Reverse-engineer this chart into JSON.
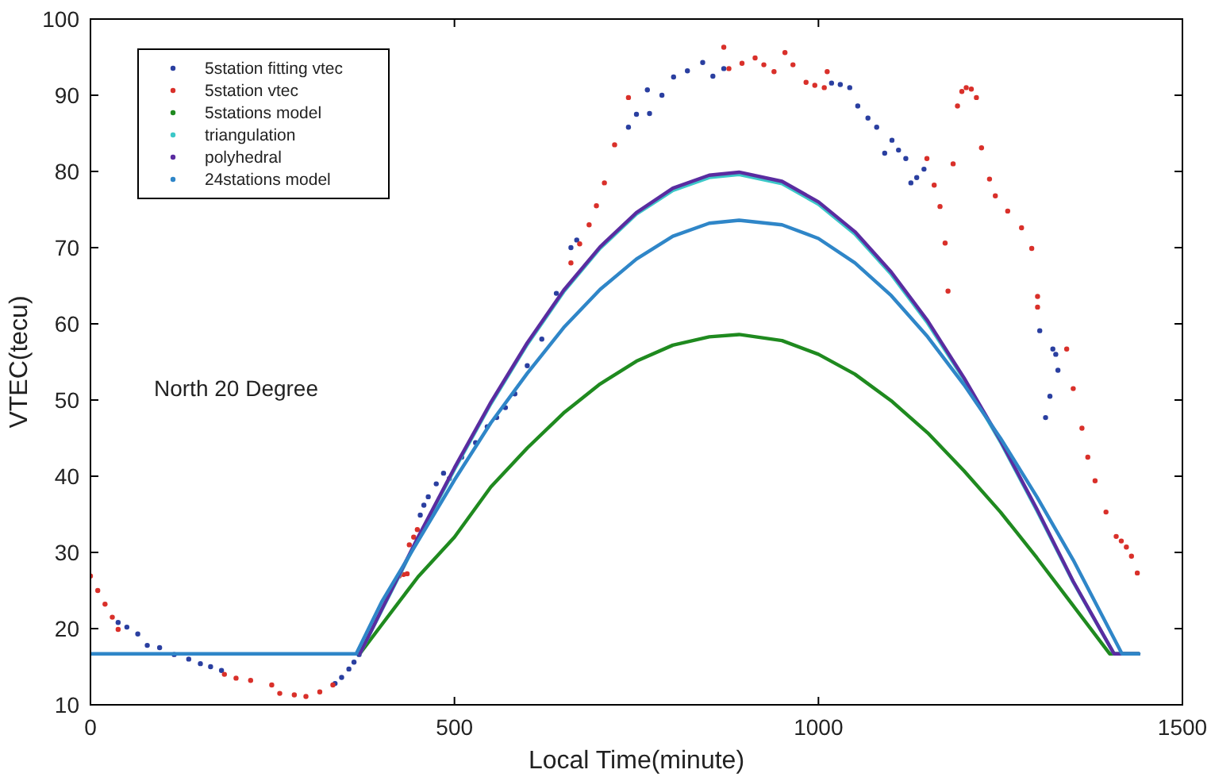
{
  "chart_data": {
    "type": "line",
    "xlabel": "Local Time(minute)",
    "ylabel": "VTEC(tecu)",
    "xlim": [
      0,
      1500
    ],
    "ylim": [
      10,
      100
    ],
    "xticks": [
      0,
      500,
      1000,
      1500
    ],
    "yticks": [
      10,
      20,
      30,
      40,
      50,
      60,
      70,
      80,
      90,
      100
    ],
    "grid": false,
    "legend": "top left",
    "annotations": [
      "North 20 Degree"
    ],
    "series": [
      {
        "name": "5station fitting vtec",
        "type": "scatter",
        "marker": "circle",
        "color": "#2a3fa0",
        "x": [
          38,
          50,
          65,
          78,
          95,
          115,
          135,
          151,
          165,
          180,
          336,
          345,
          355,
          362,
          369,
          453,
          458,
          464,
          475,
          485,
          493,
          510,
          529,
          545,
          558,
          570,
          583,
          600,
          620,
          640,
          660,
          668,
          739,
          750,
          765,
          768,
          785,
          801,
          820,
          841,
          855,
          870,
          1018,
          1030,
          1043,
          1054,
          1068,
          1080,
          1091,
          1101,
          1110,
          1120,
          1127,
          1135,
          1145,
          1304,
          1312,
          1318,
          1322,
          1326,
          1329
        ],
        "values": [
          20.8,
          20.2,
          19.3,
          17.8,
          17.5,
          16.6,
          16.0,
          15.4,
          15.0,
          14.5,
          12.8,
          13.6,
          14.7,
          15.6,
          16.6,
          34.9,
          36.2,
          37.3,
          39.0,
          40.4,
          39.7,
          42.5,
          44.4,
          46.5,
          47.7,
          49.0,
          50.8,
          54.5,
          58.0,
          64.0,
          70.0,
          71.0,
          85.8,
          87.5,
          90.7,
          87.6,
          90.0,
          92.4,
          93.2,
          94.3,
          92.5,
          93.5,
          91.6,
          91.4,
          91.0,
          88.6,
          87.0,
          85.8,
          82.4,
          84.1,
          82.8,
          81.7,
          78.5,
          79.2,
          80.3,
          59.1,
          47.7,
          50.5,
          56.7,
          56.0,
          53.9
        ]
      },
      {
        "name": "5station vtec",
        "type": "scatter",
        "marker": "circle",
        "color": "#d9302a",
        "x": [
          0,
          10,
          20,
          30,
          38,
          184,
          200,
          220,
          249,
          260,
          280,
          296,
          315,
          333,
          424,
          430,
          435,
          438,
          444,
          449,
          660,
          672,
          685,
          695,
          706,
          720,
          739,
          870,
          877,
          895,
          913,
          925,
          939,
          954,
          965,
          983,
          995,
          1008,
          1012,
          1149,
          1159,
          1167,
          1174,
          1178,
          1185,
          1191,
          1197,
          1203,
          1210,
          1217,
          1224,
          1235,
          1243,
          1260,
          1279,
          1293,
          1301,
          1301,
          1341,
          1350,
          1362,
          1370,
          1380,
          1395,
          1409,
          1416,
          1423,
          1430,
          1438
        ],
        "values": [
          26.9,
          25.0,
          23.2,
          21.5,
          19.9,
          14.0,
          13.5,
          13.2,
          12.6,
          11.5,
          11.3,
          11.1,
          11.7,
          12.6,
          26.9,
          27.1,
          27.2,
          31.0,
          32.0,
          33.0,
          68.0,
          70.5,
          73.0,
          75.5,
          78.5,
          83.5,
          89.7,
          96.3,
          93.5,
          94.2,
          94.9,
          94.0,
          93.1,
          95.6,
          94.0,
          91.7,
          91.3,
          91.0,
          93.1,
          81.7,
          78.2,
          75.4,
          70.6,
          64.3,
          81.0,
          88.6,
          90.5,
          91.0,
          90.8,
          89.7,
          83.1,
          79.0,
          76.8,
          74.8,
          72.6,
          69.9,
          63.6,
          62.2,
          56.7,
          51.5,
          46.3,
          42.5,
          39.4,
          35.3,
          32.1,
          31.5,
          30.7,
          29.5,
          27.3
        ]
      },
      {
        "name": "5stations model",
        "type": "line",
        "marker": "none",
        "color": "#1f8a1f",
        "x": [
          370,
          400,
          450,
          500,
          550,
          600,
          650,
          700,
          750,
          800,
          850,
          891,
          950,
          1000,
          1050,
          1100,
          1150,
          1200,
          1250,
          1300,
          1350,
          1400,
          1440
        ],
        "values": [
          16.7,
          20.5,
          26.8,
          32.0,
          38.6,
          43.7,
          48.3,
          52.1,
          55.1,
          57.2,
          58.3,
          58.6,
          57.8,
          56.0,
          53.4,
          49.9,
          45.7,
          40.7,
          35.3,
          29.3,
          23.0,
          16.7,
          16.7
        ]
      },
      {
        "name": "triangulation",
        "type": "line",
        "marker": "none",
        "color": "#3cc8c8",
        "x": [
          370,
          400,
          450,
          500,
          550,
          600,
          650,
          700,
          750,
          800,
          850,
          891,
          950,
          1000,
          1050,
          1100,
          1150,
          1200,
          1250,
          1300,
          1350,
          1406,
          1440
        ],
        "values": [
          16.7,
          22.4,
          31.8,
          40.9,
          49.5,
          57.3,
          64.2,
          69.9,
          74.4,
          77.5,
          79.2,
          79.6,
          78.4,
          75.7,
          71.8,
          66.5,
          60.1,
          52.7,
          44.5,
          35.5,
          26.1,
          16.7,
          16.7
        ]
      },
      {
        "name": "polyhedral",
        "type": "line",
        "marker": "none",
        "color": "#5a2ca0",
        "x": [
          370,
          400,
          450,
          500,
          550,
          600,
          650,
          700,
          750,
          800,
          850,
          891,
          950,
          1000,
          1050,
          1100,
          1150,
          1200,
          1250,
          1300,
          1350,
          1406,
          1440
        ],
        "values": [
          16.7,
          22.5,
          32.0,
          41.1,
          49.7,
          57.5,
          64.4,
          70.1,
          74.6,
          77.8,
          79.5,
          79.9,
          78.7,
          76.0,
          72.1,
          66.8,
          60.4,
          52.9,
          44.7,
          35.7,
          26.2,
          16.7,
          16.7
        ]
      },
      {
        "name": "24stations model",
        "type": "line",
        "marker": "none",
        "color": "#2f86c8",
        "x": [
          0,
          365,
          400,
          450,
          500,
          550,
          600,
          650,
          700,
          750,
          800,
          850,
          891,
          950,
          1000,
          1050,
          1100,
          1150,
          1200,
          1250,
          1300,
          1350,
          1417,
          1440
        ],
        "values": [
          16.7,
          16.7,
          23.5,
          31.5,
          39.5,
          47.0,
          53.5,
          59.5,
          64.5,
          68.5,
          71.5,
          73.2,
          73.6,
          73.0,
          71.2,
          68.0,
          63.7,
          58.3,
          52.0,
          45.0,
          37.3,
          29.0,
          16.7,
          16.7
        ]
      }
    ]
  }
}
